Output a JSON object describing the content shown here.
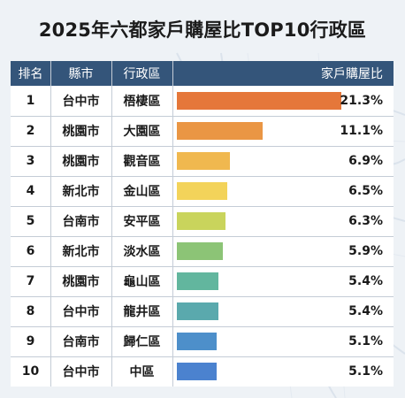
{
  "chart_data": {
    "type": "bar",
    "title": "2025年六都家戶購屋比TOP10行政區",
    "columns": [
      "排名",
      "縣市",
      "行政區",
      "家戶購屋比"
    ],
    "rows": [
      {
        "rank": "1",
        "city": "台中市",
        "district": "梧棲區",
        "value": 21.3,
        "label": "21.3%",
        "color": "#e5773a"
      },
      {
        "rank": "2",
        "city": "桃園市",
        "district": "大園區",
        "value": 11.1,
        "label": "11.1%",
        "color": "#ea9644"
      },
      {
        "rank": "3",
        "city": "桃園市",
        "district": "觀音區",
        "value": 6.9,
        "label": "6.9%",
        "color": "#f0b84f"
      },
      {
        "rank": "4",
        "city": "新北市",
        "district": "金山區",
        "value": 6.5,
        "label": "6.5%",
        "color": "#f3d35a"
      },
      {
        "rank": "5",
        "city": "台南市",
        "district": "安平區",
        "value": 6.3,
        "label": "6.3%",
        "color": "#c9d45c"
      },
      {
        "rank": "6",
        "city": "新北市",
        "district": "淡水區",
        "value": 5.9,
        "label": "5.9%",
        "color": "#8cc476"
      },
      {
        "rank": "7",
        "city": "桃園市",
        "district": "龜山區",
        "value": 5.4,
        "label": "5.4%",
        "color": "#62b69e"
      },
      {
        "rank": "8",
        "city": "台中市",
        "district": "龍井區",
        "value": 5.4,
        "label": "5.4%",
        "color": "#5aa9ad"
      },
      {
        "rank": "9",
        "city": "台南市",
        "district": "歸仁區",
        "value": 5.1,
        "label": "5.1%",
        "color": "#4d8fca"
      },
      {
        "rank": "10",
        "city": "台中市",
        "district": "中區",
        "value": 5.1,
        "label": "5.1%",
        "color": "#4b82cf"
      }
    ],
    "xlim": [
      0,
      21.3
    ]
  },
  "header_color": "#34557a"
}
